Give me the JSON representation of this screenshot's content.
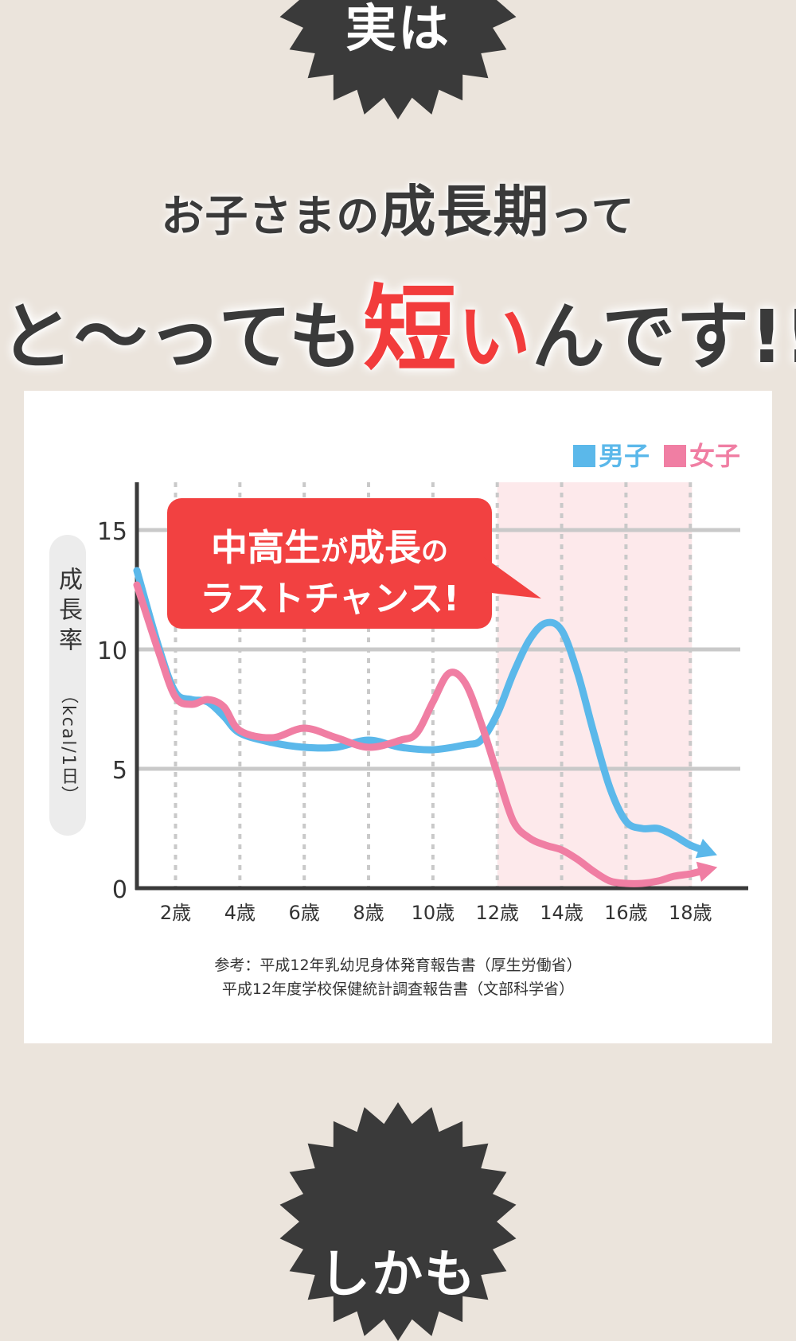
{
  "top_burst": {
    "text": "実は"
  },
  "headline": {
    "line1_a": "お子さまの",
    "line1_b": "成長期",
    "line1_c": "って",
    "line2_a": "と〜っても",
    "line2_b": "短",
    "line2_c": "い",
    "line2_d": "んです!!"
  },
  "callout": {
    "line1_a": "中高生",
    "line1_b": "が",
    "line1_c": "成長",
    "line1_d": "の",
    "line2": "ラストチャンス!"
  },
  "legend": {
    "boy": "男子",
    "girl": "女子"
  },
  "y_axis_label": "成長率",
  "y_axis_unit": "（kcal/1日）",
  "chart_data": {
    "type": "line",
    "x_labels": [
      "2歳",
      "4歳",
      "6歳",
      "8歳",
      "10歳",
      "12歳",
      "14歳",
      "16歳",
      "18歳"
    ],
    "x_ticks": [
      2,
      4,
      6,
      8,
      10,
      12,
      14,
      16,
      18
    ],
    "xlim": [
      0.8,
      19.8
    ],
    "ylim": [
      0,
      17
    ],
    "y_ticks": [
      0,
      5,
      10,
      15
    ],
    "highlight_range": [
      12,
      18
    ],
    "series": [
      {
        "name": "男子",
        "color": "#5bb8ea",
        "x": [
          0.8,
          1.5,
          2.0,
          2.5,
          3.0,
          3.5,
          4.0,
          5.0,
          6.0,
          7.0,
          8.0,
          9.0,
          10.0,
          11.0,
          11.5,
          12.0,
          12.5,
          13.0,
          13.5,
          14.0,
          14.5,
          15.0,
          15.5,
          16.0,
          16.5,
          17.0,
          17.5,
          18.0,
          18.6
        ],
        "y": [
          13.3,
          10.0,
          8.2,
          7.9,
          7.8,
          7.2,
          6.5,
          6.1,
          5.9,
          5.9,
          6.2,
          5.9,
          5.8,
          6.0,
          6.2,
          7.3,
          9.0,
          10.4,
          11.1,
          10.8,
          9.0,
          6.5,
          4.2,
          2.8,
          2.5,
          2.5,
          2.2,
          1.8,
          1.5
        ]
      },
      {
        "name": "女子",
        "color": "#f07ea3",
        "x": [
          0.8,
          1.5,
          2.0,
          2.5,
          3.0,
          3.5,
          4.0,
          5.0,
          6.0,
          7.0,
          8.0,
          9.0,
          9.5,
          10.0,
          10.5,
          11.0,
          11.5,
          12.0,
          12.5,
          13.0,
          13.5,
          14.0,
          14.5,
          15.0,
          15.5,
          16.0,
          16.5,
          17.0,
          17.5,
          18.0,
          18.6
        ],
        "y": [
          12.7,
          9.8,
          8.0,
          7.7,
          7.9,
          7.6,
          6.6,
          6.3,
          6.7,
          6.3,
          5.9,
          6.2,
          6.5,
          7.8,
          9.0,
          8.6,
          6.9,
          4.8,
          2.8,
          2.1,
          1.8,
          1.6,
          1.2,
          0.7,
          0.3,
          0.2,
          0.2,
          0.3,
          0.5,
          0.6,
          0.8
        ]
      }
    ],
    "axis_color": "#3a3a3a",
    "grid_color": "#c9c9c9",
    "highlight_color": "#fde9eb"
  },
  "source": {
    "line1": "参考：平成12年乳幼児身体発育報告書（厚生労働省）",
    "line2": "平成12年度学校保健統計調査報告書（文部科学省）"
  },
  "bottom_burst": {
    "text": "しかも"
  }
}
